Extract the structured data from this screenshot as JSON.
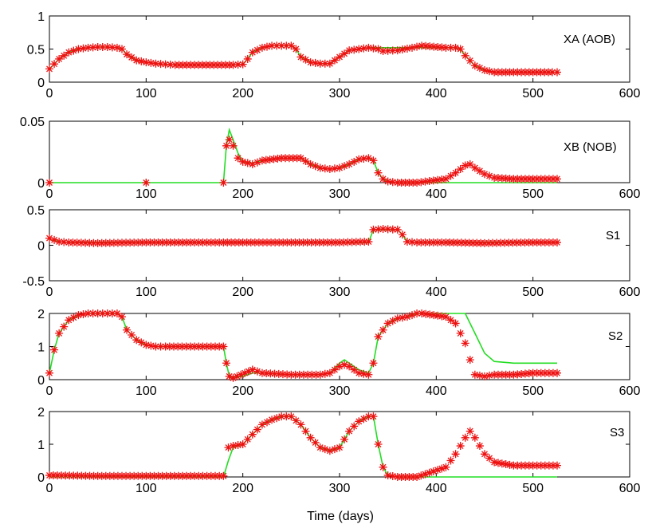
{
  "figure": {
    "xlabel": "Time (days)"
  },
  "colors": {
    "model_line": "#22dd22",
    "measured_marker": "#ee1111",
    "axes": "#000000"
  },
  "chart_data": [
    {
      "type": "line",
      "title": "XA (AOB)",
      "xlim": [
        0,
        600
      ],
      "ylim": [
        0,
        1
      ],
      "xticks": [
        0,
        100,
        200,
        300,
        400,
        500,
        600
      ],
      "yticks": [
        0,
        0.5,
        1
      ],
      "series": [
        {
          "style": "line",
          "x": [
            0,
            10,
            20,
            30,
            40,
            50,
            60,
            70,
            75,
            80,
            90,
            100,
            110,
            120,
            130,
            150,
            170,
            190,
            200,
            205,
            210,
            220,
            230,
            240,
            250,
            255,
            260,
            270,
            280,
            290,
            300,
            310,
            320,
            330,
            340,
            360,
            380,
            400,
            420,
            425,
            430,
            440,
            450,
            460,
            480,
            500,
            520,
            525
          ],
          "y": [
            0.2,
            0.35,
            0.45,
            0.5,
            0.52,
            0.53,
            0.53,
            0.52,
            0.5,
            0.42,
            0.33,
            0.3,
            0.28,
            0.27,
            0.26,
            0.26,
            0.26,
            0.26,
            0.27,
            0.35,
            0.45,
            0.52,
            0.55,
            0.55,
            0.55,
            0.5,
            0.38,
            0.3,
            0.28,
            0.28,
            0.38,
            0.48,
            0.5,
            0.52,
            0.52,
            0.52,
            0.52,
            0.52,
            0.52,
            0.5,
            0.4,
            0.25,
            0.18,
            0.15,
            0.15,
            0.15,
            0.15,
            0.15
          ]
        },
        {
          "style": "markers",
          "x": [
            0,
            10,
            20,
            30,
            40,
            50,
            60,
            70,
            75,
            80,
            90,
            100,
            110,
            120,
            130,
            150,
            170,
            190,
            200,
            205,
            210,
            220,
            230,
            240,
            250,
            255,
            260,
            270,
            280,
            290,
            300,
            310,
            320,
            330,
            340,
            345,
            360,
            375,
            385,
            410,
            420,
            425,
            430,
            440,
            450,
            460,
            480,
            500,
            520,
            525
          ],
          "y": [
            0.2,
            0.35,
            0.45,
            0.5,
            0.52,
            0.53,
            0.53,
            0.52,
            0.5,
            0.42,
            0.33,
            0.3,
            0.28,
            0.27,
            0.26,
            0.26,
            0.26,
            0.26,
            0.27,
            0.35,
            0.45,
            0.52,
            0.55,
            0.55,
            0.55,
            0.5,
            0.38,
            0.3,
            0.28,
            0.28,
            0.38,
            0.48,
            0.5,
            0.52,
            0.5,
            0.47,
            0.48,
            0.52,
            0.55,
            0.52,
            0.52,
            0.5,
            0.4,
            0.25,
            0.18,
            0.15,
            0.15,
            0.15,
            0.15,
            0.15
          ]
        }
      ]
    },
    {
      "type": "line",
      "title": "XB (NOB)",
      "xlim": [
        0,
        600
      ],
      "ylim": [
        0,
        0.05
      ],
      "xticks": [
        0,
        100,
        200,
        300,
        400,
        500,
        600
      ],
      "yticks": [
        0,
        0.05
      ],
      "series": [
        {
          "style": "line",
          "x": [
            0,
            100,
            180,
            183,
            186,
            190,
            195,
            200,
            210,
            220,
            240,
            260,
            270,
            280,
            290,
            300,
            310,
            320,
            330,
            335,
            340,
            345,
            350,
            360,
            380,
            400,
            450,
            500,
            525
          ],
          "y": [
            0,
            0,
            0,
            0.03,
            0.043,
            0.035,
            0.024,
            0.017,
            0.016,
            0.018,
            0.02,
            0.02,
            0.015,
            0.012,
            0.011,
            0.012,
            0.015,
            0.019,
            0.02,
            0.018,
            0.008,
            0.003,
            0.001,
            0,
            0,
            0,
            0,
            0,
            0
          ]
        },
        {
          "style": "markers",
          "x": [
            0,
            100,
            180,
            183,
            186,
            190,
            195,
            200,
            210,
            220,
            240,
            260,
            270,
            280,
            290,
            300,
            310,
            320,
            330,
            335,
            340,
            345,
            350,
            360,
            380,
            410,
            420,
            430,
            435,
            440,
            450,
            460,
            480,
            500,
            525
          ],
          "y": [
            0,
            0,
            0,
            0.03,
            0.035,
            0.03,
            0.02,
            0.017,
            0.015,
            0.018,
            0.02,
            0.02,
            0.015,
            0.012,
            0.011,
            0.012,
            0.015,
            0.019,
            0.02,
            0.018,
            0.008,
            0.003,
            0.001,
            0,
            0,
            0.003,
            0.008,
            0.014,
            0.015,
            0.012,
            0.007,
            0.004,
            0.003,
            0.003,
            0.003
          ]
        }
      ]
    },
    {
      "type": "line",
      "title": "S1",
      "xlim": [
        0,
        600
      ],
      "ylim": [
        -0.5,
        0.5
      ],
      "xticks": [
        0,
        100,
        200,
        300,
        400,
        500,
        600
      ],
      "yticks": [
        -0.5,
        0,
        0.5
      ],
      "series": [
        {
          "style": "line",
          "x": [
            0,
            10,
            20,
            50,
            100,
            150,
            200,
            250,
            300,
            330,
            335,
            345,
            360,
            365,
            370,
            380,
            400,
            450,
            500,
            525
          ],
          "y": [
            0.08,
            0.05,
            0.04,
            0.04,
            0.04,
            0.04,
            0.04,
            0.04,
            0.04,
            0.04,
            0.22,
            0.22,
            0.22,
            0.15,
            0.05,
            0.04,
            0.04,
            0.04,
            0.04,
            0.04
          ]
        },
        {
          "style": "markers",
          "x": [
            0,
            10,
            20,
            50,
            100,
            150,
            180,
            200,
            250,
            300,
            330,
            335,
            345,
            360,
            365,
            370,
            380,
            410,
            450,
            500,
            525
          ],
          "y": [
            0.1,
            0.05,
            0.04,
            0.03,
            0.04,
            0.04,
            0.04,
            0.04,
            0.04,
            0.04,
            0.05,
            0.22,
            0.23,
            0.22,
            0.15,
            0.05,
            0.04,
            0.04,
            0.03,
            0.04,
            0.04
          ]
        }
      ]
    },
    {
      "type": "line",
      "title": "S2",
      "xlim": [
        0,
        600
      ],
      "ylim": [
        0,
        2
      ],
      "xticks": [
        0,
        100,
        200,
        300,
        400,
        500,
        600
      ],
      "yticks": [
        0,
        1,
        2
      ],
      "series": [
        {
          "style": "line",
          "x": [
            0,
            5,
            10,
            20,
            30,
            40,
            50,
            60,
            70,
            75,
            80,
            90,
            100,
            110,
            120,
            150,
            180,
            183,
            186,
            190,
            200,
            210,
            220,
            250,
            280,
            290,
            300,
            305,
            310,
            320,
            330,
            335,
            340,
            350,
            360,
            370,
            380,
            390,
            400,
            420,
            430,
            440,
            450,
            460,
            480,
            500,
            525
          ],
          "y": [
            0.2,
            0.9,
            1.4,
            1.8,
            1.95,
            2.0,
            2.0,
            2.0,
            2.0,
            1.9,
            1.5,
            1.2,
            1.05,
            1.0,
            1.0,
            1.0,
            1.0,
            0.5,
            0.1,
            0.05,
            0.1,
            0.2,
            0.2,
            0.15,
            0.15,
            0.2,
            0.5,
            0.6,
            0.5,
            0.3,
            0.2,
            0.5,
            1.3,
            1.7,
            1.85,
            1.9,
            2.0,
            2.0,
            2.0,
            2.0,
            2.0,
            1.4,
            0.8,
            0.55,
            0.5,
            0.5,
            0.5
          ]
        },
        {
          "style": "markers",
          "x": [
            0,
            5,
            10,
            20,
            30,
            40,
            50,
            60,
            70,
            75,
            80,
            90,
            100,
            110,
            120,
            150,
            180,
            183,
            186,
            190,
            210,
            220,
            250,
            280,
            290,
            300,
            305,
            310,
            320,
            330,
            335,
            340,
            350,
            360,
            370,
            380,
            385,
            410,
            420,
            425,
            430,
            435,
            440,
            450,
            460,
            480,
            500,
            525
          ],
          "y": [
            0.2,
            0.9,
            1.4,
            1.8,
            1.95,
            2.0,
            2.0,
            2.0,
            2.0,
            1.9,
            1.5,
            1.2,
            1.05,
            1.0,
            1.0,
            1.0,
            1.0,
            0.5,
            0.1,
            0.05,
            0.3,
            0.2,
            0.15,
            0.15,
            0.2,
            0.4,
            0.45,
            0.4,
            0.2,
            0.15,
            0.5,
            1.3,
            1.7,
            1.85,
            1.9,
            2.0,
            2.0,
            1.9,
            1.7,
            1.4,
            1.1,
            0.6,
            0.15,
            0.1,
            0.15,
            0.15,
            0.2,
            0.2
          ]
        }
      ]
    },
    {
      "type": "line",
      "title": "S3",
      "xlim": [
        0,
        600
      ],
      "ylim": [
        0,
        2
      ],
      "xticks": [
        0,
        100,
        200,
        300,
        400,
        500,
        600
      ],
      "yticks": [
        0,
        1,
        2
      ],
      "series": [
        {
          "style": "line",
          "x": [
            0,
            50,
            100,
            150,
            180,
            185,
            190,
            200,
            210,
            220,
            230,
            240,
            250,
            260,
            270,
            280,
            290,
            300,
            310,
            320,
            330,
            335,
            340,
            345,
            350,
            360,
            380,
            400,
            450,
            500,
            525
          ],
          "y": [
            0,
            0,
            0,
            0,
            0,
            0.5,
            0.9,
            1.0,
            1.3,
            1.6,
            1.75,
            1.85,
            1.85,
            1.6,
            1.2,
            0.9,
            0.8,
            0.9,
            1.4,
            1.7,
            1.85,
            1.85,
            1.0,
            0.3,
            0.05,
            0,
            0,
            0,
            0,
            0,
            0
          ]
        },
        {
          "style": "markers",
          "x": [
            0,
            50,
            100,
            150,
            180,
            185,
            190,
            200,
            210,
            220,
            230,
            240,
            250,
            260,
            270,
            280,
            290,
            300,
            310,
            320,
            330,
            335,
            340,
            345,
            350,
            360,
            380,
            410,
            420,
            430,
            435,
            440,
            450,
            460,
            480,
            500,
            525
          ],
          "y": [
            0.05,
            0.03,
            0.03,
            0.03,
            0.03,
            0.9,
            0.95,
            1.0,
            1.3,
            1.6,
            1.75,
            1.85,
            1.85,
            1.6,
            1.2,
            0.9,
            0.8,
            0.9,
            1.4,
            1.7,
            1.85,
            1.85,
            1.0,
            0.3,
            0.05,
            0,
            0,
            0.3,
            0.7,
            1.2,
            1.4,
            1.2,
            0.7,
            0.45,
            0.35,
            0.35,
            0.35
          ]
        }
      ]
    }
  ]
}
